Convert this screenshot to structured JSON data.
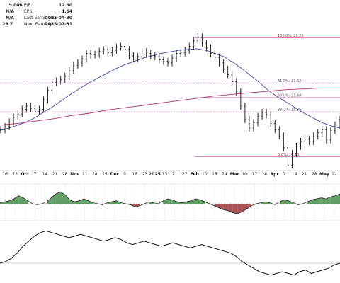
{
  "stats": {
    "left": [
      {
        "value": "9.00B"
      },
      {
        "value": "N/A"
      },
      {
        "value": "N/A"
      },
      {
        "value": "29.7"
      }
    ],
    "right": [
      {
        "label": "P/E:",
        "value": "12.30"
      },
      {
        "label": "EPS:",
        "value": "1.64"
      },
      {
        "label": "Last Earnings:",
        "value": "2025-04-30"
      },
      {
        "label": "Next Earnings:",
        "value": "2025-07-31"
      }
    ]
  },
  "colors": {
    "price": "#111111",
    "ma_short": "#3b4aa8",
    "ma_long": "#a8326e",
    "fib": "#c0409a",
    "osc_pos": "#2e7d32",
    "osc_neg": "#8b1a1a",
    "grid": "#dddddd"
  },
  "chart_data": {
    "type": "line",
    "x_axis": {
      "labels": [
        "16",
        "23",
        "Oct",
        "7",
        "14",
        "21",
        "28",
        "Nov",
        "11",
        "18",
        "25",
        "Dec",
        "9",
        "16",
        "23",
        "2025",
        "13",
        "21",
        "27",
        "Feb",
        "10",
        "18",
        "24",
        "Mar",
        "10",
        "17",
        "24",
        "Apr",
        "7",
        "14",
        "21",
        "28",
        "May",
        "12"
      ],
      "bold": [
        "Oct",
        "Nov",
        "Dec",
        "2025",
        "Feb",
        "Mar",
        "Apr",
        "May"
      ]
    },
    "price_range": [
      12.5,
      30.5
    ],
    "price": [
      17.6,
      18.0,
      18.6,
      19.2,
      19.6,
      20.2,
      20.6,
      20.3,
      19.9,
      20.2,
      21.4,
      22.6,
      23.6,
      23.8,
      24.0,
      24.4,
      25.1,
      25.8,
      26.1,
      26.6,
      27.3,
      27.1,
      27.2,
      27.6,
      27.8,
      27.4,
      27.7,
      28.1,
      28.2,
      27.8,
      27.0,
      26.6,
      26.9,
      27.5,
      27.3,
      27.0,
      26.9,
      26.5,
      26.3,
      26.1,
      26.7,
      27.3,
      27.4,
      27.7,
      28.2,
      28.9,
      29.4,
      28.6,
      28.0,
      27.3,
      26.8,
      26.1,
      25.3,
      24.6,
      23.7,
      22.4,
      20.6,
      18.9,
      17.8,
      18.5,
      19.3,
      19.8,
      19.5,
      18.4,
      17.6,
      16.8,
      15.3,
      13.1,
      14.6,
      15.5,
      16.1,
      16.4,
      16.1,
      16.8,
      17.2,
      17.6,
      16.3,
      17.5,
      18.2,
      18.9
    ],
    "ma_short": [
      17.5,
      17.8,
      18.2,
      18.6,
      19.2,
      19.9,
      20.6,
      21.4,
      22.2,
      22.9,
      23.6,
      24.2,
      24.8,
      25.4,
      25.9,
      26.3,
      26.7,
      27.0,
      27.3,
      27.5,
      27.7,
      27.8,
      27.9,
      27.7,
      27.3,
      26.9,
      26.2,
      25.4,
      24.5,
      23.6,
      22.6,
      21.8,
      21.1,
      20.4,
      19.7,
      19.1,
      18.5,
      18.1,
      17.8
    ],
    "ma_long": [
      18.2,
      18.4,
      18.7,
      19.0,
      19.4,
      19.7,
      20.1,
      20.4,
      20.7,
      21.0,
      21.3,
      21.6,
      21.9,
      22.1,
      22.3,
      22.5,
      22.7,
      22.8,
      22.9,
      22.9
    ],
    "fib_levels": [
      {
        "pct": "100.0%",
        "value": 29.29,
        "label": "100.0%: 29.29"
      },
      {
        "pct": "61.8%",
        "value": 23.52,
        "label": "61.8%: 23.52"
      },
      {
        "pct": "50.0%",
        "value": 21.69,
        "label": "50.0%: 21.69"
      },
      {
        "pct": "38.2%",
        "value": 19.86,
        "label": "38.2%: 19.86"
      },
      {
        "pct": "0.0%",
        "value": 14.18,
        "label": "0.0%: 14.18"
      }
    ],
    "osc1": [
      0.1,
      0.2,
      0.3,
      0.5,
      0.8,
      0.6,
      0.3,
      0.0,
      -0.1,
      0.0,
      0.2,
      0.6,
      1.0,
      1.2,
      0.9,
      0.4,
      0.2,
      0.3,
      0.5,
      0.3,
      0.1,
      0.0,
      -0.1,
      0.1,
      0.2,
      0.3,
      0.1,
      0.0,
      -0.1,
      -0.3,
      -0.2,
      0.0,
      0.2,
      0.1,
      0.0,
      0.3,
      0.5,
      0.4,
      0.2,
      0.1,
      0.2,
      0.3,
      0.5,
      0.4,
      0.2,
      0.0,
      -0.2,
      -0.4,
      -0.6,
      -0.7,
      -0.9,
      -1.0,
      -0.8,
      -0.5,
      -0.2,
      0.0,
      0.1,
      0.2,
      0.1,
      -0.1,
      0.2,
      0.4,
      0.3,
      0.1,
      -0.1,
      0.0,
      0.2,
      0.4,
      0.5,
      0.6,
      0.5,
      0.7,
      0.8,
      1.0
    ],
    "osc2": [
      0.0,
      0.05,
      0.15,
      0.3,
      0.5,
      0.65,
      0.8,
      0.9,
      0.95,
      0.9,
      0.85,
      0.8,
      0.75,
      0.8,
      0.85,
      0.8,
      0.75,
      0.7,
      0.65,
      0.7,
      0.75,
      0.7,
      0.6,
      0.55,
      0.6,
      0.65,
      0.6,
      0.55,
      0.5,
      0.55,
      0.6,
      0.55,
      0.5,
      0.45,
      0.5,
      0.55,
      0.5,
      0.45,
      0.4,
      0.35,
      0.3,
      0.2,
      0.05,
      -0.05,
      -0.15,
      -0.25,
      -0.3,
      -0.35,
      -0.3,
      -0.25,
      -0.3,
      -0.35,
      -0.25,
      -0.2,
      -0.3,
      -0.25,
      -0.2,
      -0.15,
      -0.05,
      0.0
    ]
  }
}
